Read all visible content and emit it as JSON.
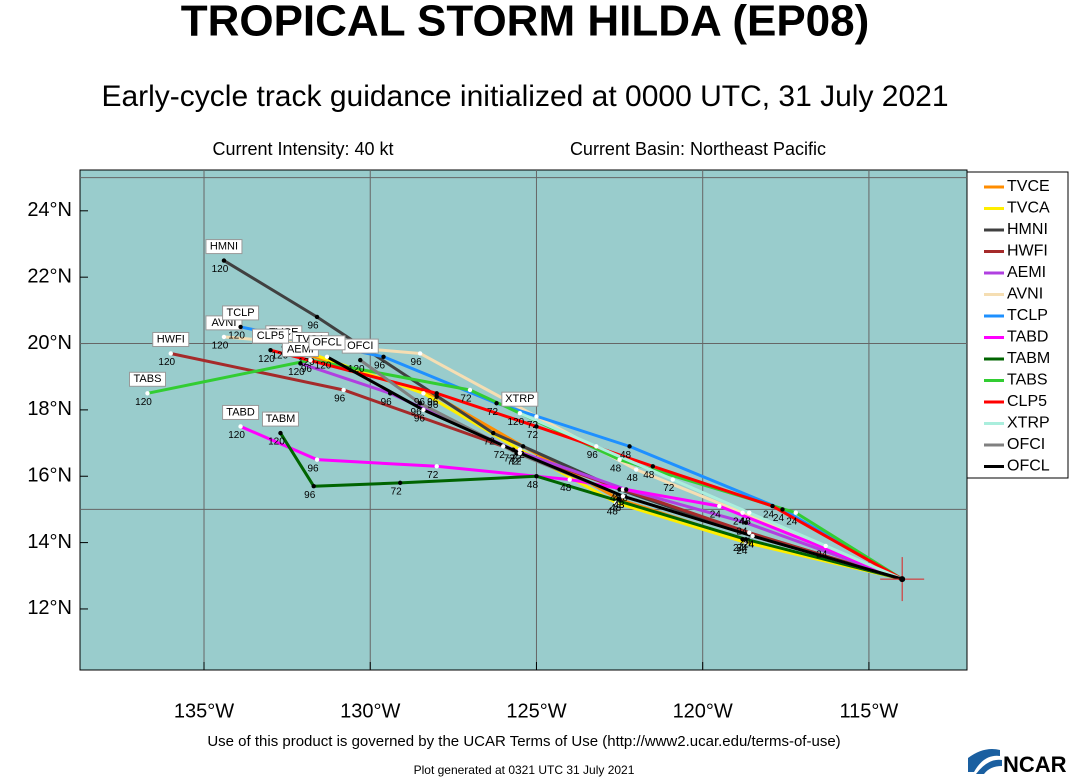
{
  "chart_data": {
    "type": "track",
    "title": "TROPICAL STORM HILDA (EP08)",
    "subtitle": "Early-cycle track guidance initialized at 0000 UTC, 31 July 2021",
    "intensity": "Current Intensity: 40 kt",
    "basin": "Current Basin: Northeast Pacific",
    "footer": "Use of this product is governed by the UCAR Terms of Use (http://www2.ucar.edu/terms-of-use)",
    "generated": "Plot generated at 0321 UTC   31 July 2021",
    "logo": "NCAR",
    "xlim": [
      -138.73,
      -112.05
    ],
    "ylim": [
      10.16,
      25.23
    ],
    "xticks": [
      {
        "value": -135,
        "label": "135°W"
      },
      {
        "value": -130,
        "label": "130°W"
      },
      {
        "value": -125,
        "label": "125°W"
      },
      {
        "value": -120,
        "label": "120°W"
      },
      {
        "value": -115,
        "label": "115°W"
      }
    ],
    "yticks": [
      {
        "value": 12,
        "label": "12°N"
      },
      {
        "value": 14,
        "label": "14°N"
      },
      {
        "value": 16,
        "label": "16°N"
      },
      {
        "value": 18,
        "label": "18°N"
      },
      {
        "value": 20,
        "label": "20°N"
      },
      {
        "value": 22,
        "label": "22°N"
      },
      {
        "value": 24,
        "label": "24°N"
      }
    ],
    "ygrid": [
      15,
      20,
      25
    ],
    "init": {
      "lon": -114.0,
      "lat": 12.9
    },
    "hours": [
      24,
      48,
      72,
      96,
      120
    ],
    "series": [
      {
        "name": "TVCE",
        "color": "#ff8c00",
        "x": [
          -118.8,
          -122.5,
          -125.4,
          -128.0,
          -132.6
        ],
        "values": [
          14.1,
          15.3,
          16.9,
          18.4,
          19.9
        ]
      },
      {
        "name": "TVCA",
        "color": "#ffee00",
        "x": [
          -118.7,
          -122.6,
          -125.5,
          -128.4,
          -131.8
        ],
        "values": [
          14.0,
          15.2,
          16.8,
          18.5,
          19.7
        ]
      },
      {
        "name": "HMNI",
        "color": "#404040",
        "x": [
          -118.5,
          -122.5,
          -126.3,
          -131.6,
          -134.4
        ],
        "values": [
          14.2,
          15.6,
          17.3,
          20.8,
          22.5
        ]
      },
      {
        "name": "HWFI",
        "color": "#a52a2a",
        "x": [
          -118.6,
          -122.4,
          -126.0,
          -130.8,
          -136.0
        ],
        "values": [
          14.3,
          15.6,
          16.9,
          18.6,
          19.7
        ]
      },
      {
        "name": "AEMI",
        "color": "#b040e0",
        "x": [
          -118.7,
          -122.3,
          -125.7,
          -129.4,
          -132.1
        ],
        "values": [
          14.6,
          15.6,
          16.8,
          18.5,
          19.4
        ]
      },
      {
        "name": "AVNI",
        "color": "#f5deb3",
        "x": [
          -118.8,
          -122.0,
          -125.0,
          -128.5,
          -134.4
        ],
        "values": [
          14.9,
          16.2,
          17.8,
          19.7,
          20.2
        ]
      },
      {
        "name": "TCLP",
        "color": "#1e90ff",
        "x": [
          -117.6,
          -122.2,
          -126.2,
          -129.6,
          -133.9
        ],
        "values": [
          15.0,
          16.9,
          18.2,
          19.6,
          20.5
        ]
      },
      {
        "name": "TABD",
        "color": "#ff00ff",
        "x": [
          -119.5,
          -124.0,
          -128.0,
          -131.6,
          -133.9
        ],
        "values": [
          15.1,
          15.9,
          16.3,
          16.5,
          17.5
        ]
      },
      {
        "name": "TABM",
        "color": "#006400",
        "x": [
          -118.7,
          -125.0,
          -129.1,
          -131.7,
          -132.7
        ],
        "values": [
          14.1,
          16.0,
          15.8,
          15.7,
          17.3
        ]
      },
      {
        "name": "TABS",
        "color": "#32cd32",
        "x": [
          -117.2,
          -122.5,
          -127.0,
          -131.8,
          -136.7
        ],
        "values": [
          14.9,
          16.5,
          18.6,
          19.5,
          18.5
        ]
      },
      {
        "name": "CLP5",
        "color": "#ff0000",
        "x": [
          -117.9,
          -121.5,
          -125.0,
          -128.0,
          -133.0
        ],
        "values": [
          15.1,
          16.3,
          17.5,
          18.5,
          19.8
        ]
      },
      {
        "name": "XTRP",
        "color": "#aaeedd",
        "x": [
          -116.3,
          -118.6,
          -120.9,
          -123.2,
          -125.5
        ],
        "values": [
          13.9,
          14.9,
          15.9,
          16.9,
          17.9
        ]
      },
      {
        "name": "OFCI",
        "color": "#808080",
        "x": [
          -118.5,
          -122.4,
          -125.6,
          -128.5,
          -130.3
        ],
        "values": [
          14.2,
          15.4,
          16.7,
          18.2,
          19.5
        ]
      },
      {
        "name": "OFCL",
        "color": "#000000",
        "x": [
          -118.5,
          -122.4,
          -125.5,
          -128.4,
          -131.3
        ],
        "values": [
          14.2,
          15.4,
          16.7,
          18.0,
          19.6
        ]
      }
    ]
  }
}
